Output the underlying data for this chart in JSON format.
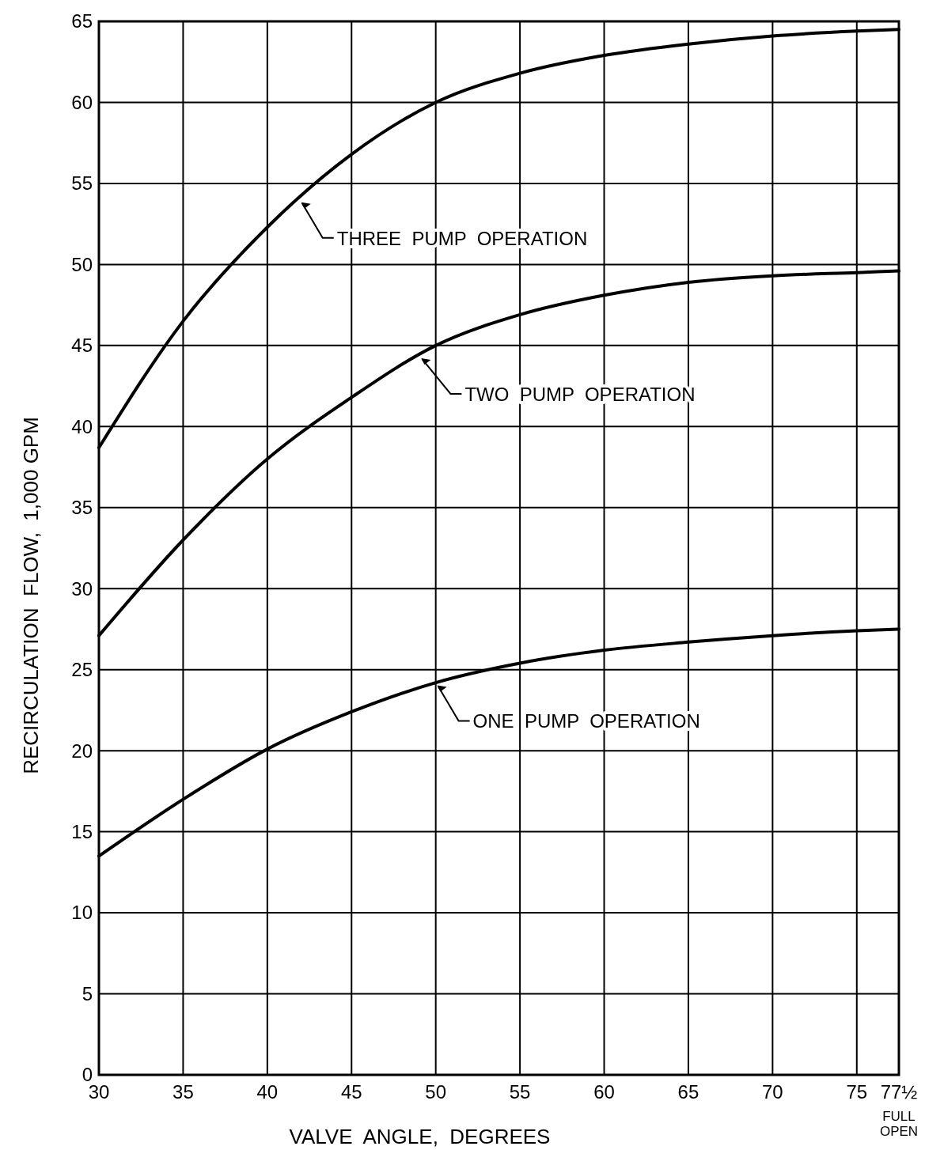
{
  "chart_data": {
    "type": "line",
    "xlabel": "VALVE  ANGLE,  DEGREES",
    "ylabel": "RECIRCULATION  FLOW,  1,000 GPM",
    "x": [
      30,
      35,
      40,
      45,
      50,
      55,
      60,
      65,
      70,
      75,
      77.5
    ],
    "series": [
      {
        "name": "THREE  PUMP  OPERATION",
        "color": "#000000",
        "values": [
          38.7,
          46.5,
          52.3,
          56.8,
          60,
          61.8,
          62.9,
          63.6,
          64.1,
          64.4,
          64.5
        ]
      },
      {
        "name": "TWO  PUMP  OPERATION",
        "color": "#000000",
        "values": [
          27.1,
          33,
          38,
          41.8,
          45,
          46.9,
          48.1,
          48.9,
          49.3,
          49.5,
          49.6
        ]
      },
      {
        "name": "ONE  PUMP  OPERATION",
        "color": "#000000",
        "values": [
          13.5,
          17,
          20.1,
          22.4,
          24.2,
          25.4,
          26.2,
          26.7,
          27.1,
          27.4,
          27.5
        ]
      }
    ],
    "xlim": [
      30,
      77.5
    ],
    "xticks": [
      30,
      35,
      40,
      45,
      50,
      55,
      60,
      65,
      70,
      75,
      {
        "value": 77.5,
        "label": "77½"
      }
    ],
    "ylim": [
      0,
      65
    ],
    "yticks": [
      0,
      5,
      10,
      15,
      20,
      25,
      30,
      35,
      40,
      45,
      50,
      55,
      60,
      65
    ],
    "annotations": [
      "FULL OPEN"
    ],
    "grid": true,
    "marker": "none",
    "line_style": "solid"
  }
}
